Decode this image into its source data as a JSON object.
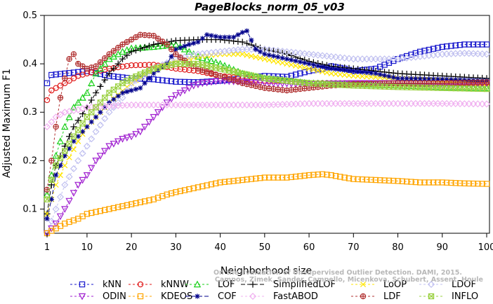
{
  "chart_data": {
    "type": "line",
    "title": "PageBlocks_norm_05_v03",
    "xlabel": "Neighborhood size",
    "ylabel": "Adjusted Maximum F1",
    "xlim": [
      1,
      100
    ],
    "ylim": [
      0.05,
      0.5
    ],
    "xticks": [
      1,
      10,
      20,
      30,
      40,
      50,
      60,
      70,
      80,
      90,
      100
    ],
    "yticks": [
      0.1,
      0.2,
      0.3,
      0.4,
      0.5
    ],
    "legend_position": "bottom",
    "watermark": [
      "Campos, Zimek, Sander, Campello, Micenkova, Schubert, Assent, Houle",
      "On the Evaluation of Unsupervised Outlier Detection. DAMI, 2015."
    ],
    "series": [
      {
        "name": "kNN",
        "color": "#1a1acd",
        "marker": "square",
        "dash": "3,3",
        "points": [
          [
            1,
            0.36
          ],
          [
            2,
            0.377
          ],
          [
            5,
            0.38
          ],
          [
            8,
            0.383
          ],
          [
            10,
            0.385
          ],
          [
            15,
            0.375
          ],
          [
            20,
            0.37
          ],
          [
            25,
            0.368
          ],
          [
            30,
            0.363
          ],
          [
            35,
            0.362
          ],
          [
            40,
            0.365
          ],
          [
            45,
            0.37
          ],
          [
            50,
            0.375
          ],
          [
            55,
            0.373
          ],
          [
            60,
            0.385
          ],
          [
            63,
            0.39
          ],
          [
            65,
            0.395
          ],
          [
            68,
            0.39
          ],
          [
            70,
            0.385
          ],
          [
            75,
            0.39
          ],
          [
            80,
            0.41
          ],
          [
            85,
            0.425
          ],
          [
            90,
            0.435
          ],
          [
            95,
            0.44
          ],
          [
            100,
            0.44
          ]
        ]
      },
      {
        "name": "kNNW",
        "color": "#e01a1a",
        "marker": "circle",
        "dash": "3,3",
        "points": [
          [
            1,
            0.325
          ],
          [
            2,
            0.345
          ],
          [
            3,
            0.35
          ],
          [
            5,
            0.36
          ],
          [
            8,
            0.375
          ],
          [
            10,
            0.38
          ],
          [
            15,
            0.39
          ],
          [
            20,
            0.397
          ],
          [
            25,
            0.398
          ],
          [
            30,
            0.39
          ],
          [
            35,
            0.385
          ],
          [
            40,
            0.375
          ],
          [
            45,
            0.37
          ],
          [
            50,
            0.365
          ],
          [
            55,
            0.365
          ],
          [
            60,
            0.36
          ],
          [
            65,
            0.36
          ],
          [
            70,
            0.36
          ],
          [
            80,
            0.36
          ],
          [
            90,
            0.36
          ],
          [
            100,
            0.36
          ]
        ]
      },
      {
        "name": "LOF",
        "color": "#1ad01a",
        "marker": "triangle",
        "dash": "3,3",
        "points": [
          [
            1,
            0.13
          ],
          [
            2,
            0.17
          ],
          [
            3,
            0.21
          ],
          [
            5,
            0.27
          ],
          [
            7,
            0.31
          ],
          [
            10,
            0.34
          ],
          [
            12,
            0.38
          ],
          [
            15,
            0.41
          ],
          [
            18,
            0.425
          ],
          [
            20,
            0.432
          ],
          [
            25,
            0.435
          ],
          [
            30,
            0.44
          ],
          [
            33,
            0.425
          ],
          [
            35,
            0.415
          ],
          [
            40,
            0.4
          ],
          [
            45,
            0.38
          ],
          [
            50,
            0.37
          ],
          [
            55,
            0.365
          ],
          [
            60,
            0.36
          ],
          [
            70,
            0.358
          ],
          [
            80,
            0.355
          ],
          [
            90,
            0.352
          ],
          [
            100,
            0.35
          ]
        ]
      },
      {
        "name": "SimplifiedLOF",
        "color": "#000000",
        "marker": "plus",
        "dash": "6,3",
        "points": [
          [
            1,
            0.09
          ],
          [
            2,
            0.15
          ],
          [
            3,
            0.19
          ],
          [
            5,
            0.23
          ],
          [
            7,
            0.27
          ],
          [
            10,
            0.31
          ],
          [
            12,
            0.34
          ],
          [
            15,
            0.38
          ],
          [
            18,
            0.41
          ],
          [
            20,
            0.425
          ],
          [
            25,
            0.44
          ],
          [
            30,
            0.448
          ],
          [
            35,
            0.45
          ],
          [
            40,
            0.45
          ],
          [
            45,
            0.445
          ],
          [
            50,
            0.43
          ],
          [
            55,
            0.42
          ],
          [
            60,
            0.405
          ],
          [
            65,
            0.395
          ],
          [
            70,
            0.39
          ],
          [
            75,
            0.385
          ],
          [
            80,
            0.38
          ],
          [
            90,
            0.375
          ],
          [
            100,
            0.37
          ]
        ]
      },
      {
        "name": "LoOP",
        "color": "#ffe500",
        "marker": "x",
        "dash": "3,3",
        "points": [
          [
            1,
            0.09
          ],
          [
            3,
            0.15
          ],
          [
            5,
            0.19
          ],
          [
            8,
            0.24
          ],
          [
            10,
            0.27
          ],
          [
            15,
            0.32
          ],
          [
            20,
            0.36
          ],
          [
            25,
            0.39
          ],
          [
            30,
            0.405
          ],
          [
            35,
            0.415
          ],
          [
            40,
            0.42
          ],
          [
            45,
            0.42
          ],
          [
            50,
            0.41
          ],
          [
            55,
            0.4
          ],
          [
            60,
            0.39
          ],
          [
            65,
            0.38
          ],
          [
            70,
            0.375
          ],
          [
            80,
            0.37
          ],
          [
            90,
            0.365
          ],
          [
            100,
            0.36
          ]
        ]
      },
      {
        "name": "LDOF",
        "color": "#c0c0f0",
        "marker": "diamond",
        "dash": "3,3",
        "points": [
          [
            1,
            0.05
          ],
          [
            3,
            0.1
          ],
          [
            5,
            0.15
          ],
          [
            8,
            0.2
          ],
          [
            10,
            0.23
          ],
          [
            12,
            0.26
          ],
          [
            15,
            0.3
          ],
          [
            18,
            0.33
          ],
          [
            20,
            0.36
          ],
          [
            25,
            0.39
          ],
          [
            30,
            0.41
          ],
          [
            35,
            0.42
          ],
          [
            40,
            0.425
          ],
          [
            45,
            0.43
          ],
          [
            50,
            0.43
          ],
          [
            55,
            0.425
          ],
          [
            60,
            0.42
          ],
          [
            65,
            0.415
          ],
          [
            70,
            0.41
          ],
          [
            75,
            0.41
          ],
          [
            80,
            0.41
          ],
          [
            85,
            0.415
          ],
          [
            90,
            0.42
          ],
          [
            95,
            0.422
          ],
          [
            100,
            0.42
          ]
        ]
      },
      {
        "name": "ODIN",
        "color": "#a020d0",
        "marker": "triangle-down",
        "dash": "3,3",
        "points": [
          [
            1,
            0.05
          ],
          [
            3,
            0.07
          ],
          [
            5,
            0.1
          ],
          [
            8,
            0.15
          ],
          [
            10,
            0.17
          ],
          [
            12,
            0.2
          ],
          [
            15,
            0.23
          ],
          [
            18,
            0.245
          ],
          [
            20,
            0.25
          ],
          [
            22,
            0.26
          ],
          [
            25,
            0.29
          ],
          [
            28,
            0.32
          ],
          [
            30,
            0.335
          ],
          [
            32,
            0.345
          ],
          [
            34,
            0.355
          ],
          [
            36,
            0.36
          ],
          [
            40,
            0.365
          ],
          [
            50,
            0.36
          ],
          [
            60,
            0.358
          ],
          [
            70,
            0.36
          ],
          [
            80,
            0.36
          ],
          [
            90,
            0.36
          ],
          [
            100,
            0.36
          ]
        ]
      },
      {
        "name": "KDEOS",
        "color": "#ffa500",
        "marker": "square",
        "dash": "3,3",
        "points": [
          [
            1,
            0.05
          ],
          [
            3,
            0.06
          ],
          [
            5,
            0.07
          ],
          [
            8,
            0.08
          ],
          [
            10,
            0.09
          ],
          [
            15,
            0.1
          ],
          [
            20,
            0.11
          ],
          [
            25,
            0.12
          ],
          [
            28,
            0.13
          ],
          [
            30,
            0.135
          ],
          [
            35,
            0.145
          ],
          [
            40,
            0.155
          ],
          [
            45,
            0.16
          ],
          [
            50,
            0.165
          ],
          [
            55,
            0.165
          ],
          [
            60,
            0.17
          ],
          [
            63,
            0.172
          ],
          [
            65,
            0.17
          ],
          [
            68,
            0.165
          ],
          [
            70,
            0.162
          ],
          [
            75,
            0.16
          ],
          [
            80,
            0.158
          ],
          [
            85,
            0.155
          ],
          [
            90,
            0.155
          ],
          [
            95,
            0.153
          ],
          [
            100,
            0.152
          ]
        ]
      },
      {
        "name": "COF",
        "color": "#00008b",
        "marker": "asterisk",
        "dash": "6,3",
        "points": [
          [
            1,
            0.08
          ],
          [
            2,
            0.12
          ],
          [
            3,
            0.17
          ],
          [
            5,
            0.21
          ],
          [
            7,
            0.24
          ],
          [
            10,
            0.27
          ],
          [
            12,
            0.29
          ],
          [
            15,
            0.32
          ],
          [
            18,
            0.34
          ],
          [
            20,
            0.345
          ],
          [
            22,
            0.35
          ],
          [
            25,
            0.38
          ],
          [
            28,
            0.4
          ],
          [
            30,
            0.43
          ],
          [
            33,
            0.44
          ],
          [
            35,
            0.445
          ],
          [
            37,
            0.46
          ],
          [
            40,
            0.455
          ],
          [
            43,
            0.455
          ],
          [
            45,
            0.465
          ],
          [
            46,
            0.468
          ],
          [
            48,
            0.43
          ],
          [
            50,
            0.42
          ],
          [
            55,
            0.41
          ],
          [
            60,
            0.4
          ],
          [
            65,
            0.39
          ],
          [
            70,
            0.385
          ],
          [
            75,
            0.38
          ],
          [
            80,
            0.37
          ],
          [
            90,
            0.368
          ],
          [
            100,
            0.365
          ]
        ]
      },
      {
        "name": "FastABOD",
        "color": "#f0b0f0",
        "marker": "diamond",
        "dash": "3,3",
        "points": [
          [
            1,
            0.27
          ],
          [
            3,
            0.29
          ],
          [
            5,
            0.3
          ],
          [
            8,
            0.305
          ],
          [
            10,
            0.31
          ],
          [
            15,
            0.313
          ],
          [
            20,
            0.315
          ],
          [
            30,
            0.315
          ],
          [
            40,
            0.315
          ],
          [
            50,
            0.315
          ],
          [
            60,
            0.318
          ],
          [
            70,
            0.318
          ],
          [
            80,
            0.318
          ],
          [
            90,
            0.318
          ],
          [
            100,
            0.317
          ]
        ]
      },
      {
        "name": "LDF",
        "color": "#b03030",
        "marker": "circle-plus",
        "dash": "3,3",
        "points": [
          [
            1,
            0.14
          ],
          [
            2,
            0.2
          ],
          [
            3,
            0.27
          ],
          [
            4,
            0.33
          ],
          [
            5,
            0.37
          ],
          [
            6,
            0.41
          ],
          [
            7,
            0.42
          ],
          [
            8,
            0.4
          ],
          [
            10,
            0.39
          ],
          [
            12,
            0.395
          ],
          [
            15,
            0.42
          ],
          [
            18,
            0.44
          ],
          [
            20,
            0.45
          ],
          [
            22,
            0.46
          ],
          [
            25,
            0.458
          ],
          [
            28,
            0.44
          ],
          [
            30,
            0.42
          ],
          [
            33,
            0.4
          ],
          [
            35,
            0.39
          ],
          [
            40,
            0.375
          ],
          [
            45,
            0.36
          ],
          [
            50,
            0.35
          ],
          [
            55,
            0.345
          ],
          [
            60,
            0.35
          ],
          [
            65,
            0.355
          ],
          [
            70,
            0.358
          ],
          [
            80,
            0.36
          ],
          [
            90,
            0.36
          ],
          [
            100,
            0.362
          ]
        ]
      },
      {
        "name": "INFLO",
        "color": "#9ad040",
        "marker": "square-x",
        "dash": "3,3",
        "points": [
          [
            1,
            0.12
          ],
          [
            2,
            0.16
          ],
          [
            3,
            0.19
          ],
          [
            5,
            0.22
          ],
          [
            7,
            0.25
          ],
          [
            10,
            0.29
          ],
          [
            12,
            0.31
          ],
          [
            15,
            0.34
          ],
          [
            18,
            0.36
          ],
          [
            20,
            0.37
          ],
          [
            25,
            0.39
          ],
          [
            30,
            0.4
          ],
          [
            35,
            0.4
          ],
          [
            40,
            0.39
          ],
          [
            45,
            0.38
          ],
          [
            50,
            0.37
          ],
          [
            55,
            0.365
          ],
          [
            60,
            0.36
          ],
          [
            70,
            0.355
          ],
          [
            80,
            0.352
          ],
          [
            90,
            0.35
          ],
          [
            100,
            0.348
          ]
        ]
      }
    ]
  }
}
